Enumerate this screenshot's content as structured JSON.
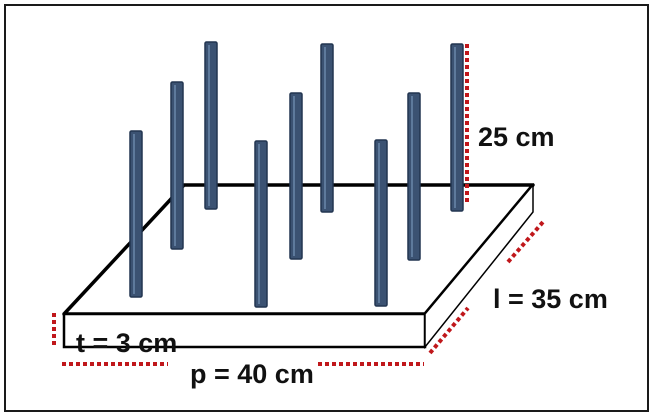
{
  "labels": {
    "height": "25 cm",
    "width_l": "l = 35 cm",
    "thickness": "t = 3 cm",
    "length_p": "p = 40 cm"
  },
  "colors": {
    "rod": "#3b5272",
    "rod_edge": "#223550",
    "dimension_marker": "#c0171b",
    "outline": "#000000"
  }
}
